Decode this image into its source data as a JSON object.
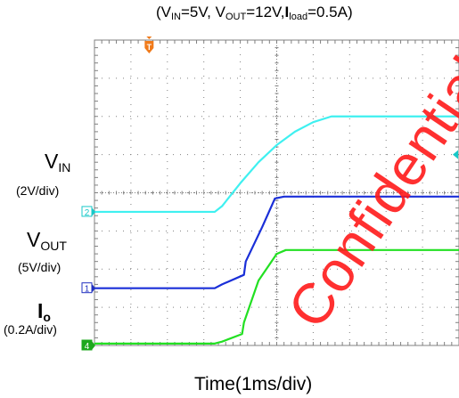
{
  "title_parts": {
    "v": "(V",
    "in_sub": "IN",
    "mid1": "=5V, V",
    "out_sub": "OUT",
    "mid2": "=12V,",
    "i": "I",
    "load_sub": "load",
    "end": "=0.5A)"
  },
  "labels": {
    "vin_main": "V",
    "vin_sub": "IN",
    "vin_scale": "(2V/div)",
    "vout_main": "V",
    "vout_sub": "OUT",
    "vout_scale": "(5V/div)",
    "io_main": "I",
    "io_sub": "o",
    "io_scale": "(0.2A/div)"
  },
  "xlabel": "Time(1ms/div)",
  "watermark": "Confidential",
  "colors": {
    "vin": "#3ff0f0",
    "vout": "#1a2fd8",
    "io": "#22e022",
    "trigger": "#f07a1a",
    "marker_vin": "#18c8c8",
    "marker_vout": "#2030c0",
    "marker_io": "#1ea81e",
    "grid": "#808080",
    "watermark": "#ff1a1a"
  },
  "chart_data": {
    "type": "line",
    "xlabel": "Time(1ms/div)",
    "x_unit": "ms",
    "xlim": [
      0,
      10
    ],
    "y_unit": "div",
    "ylim": [
      -4,
      4
    ],
    "grid": true,
    "trigger_marker": "T",
    "series": [
      {
        "name": "VIN",
        "channel": "2",
        "scale": "2V/div",
        "ground_div": -0.5,
        "x": [
          0,
          3.3,
          3.5,
          4.0,
          4.5,
          5.0,
          5.5,
          6.0,
          6.5,
          10
        ],
        "y": [
          0,
          0,
          0.15,
          0.75,
          1.3,
          1.75,
          2.1,
          2.35,
          2.5,
          2.5
        ]
      },
      {
        "name": "VOUT",
        "channel": "1",
        "scale": "5V/div",
        "ground_div": -2.5,
        "x": [
          0,
          3.3,
          3.5,
          4.1,
          4.15,
          4.6,
          4.95,
          5.2,
          10
        ],
        "y": [
          0,
          0,
          0.1,
          0.35,
          0.7,
          1.6,
          2.35,
          2.4,
          2.4
        ]
      },
      {
        "name": "Io",
        "channel": "4",
        "scale": "0.2A/div",
        "ground_div": -4,
        "x": [
          0,
          3.3,
          3.5,
          4.05,
          4.1,
          4.5,
          5.0,
          5.25,
          10
        ],
        "y": [
          0.05,
          0.05,
          0.1,
          0.3,
          0.6,
          1.7,
          2.4,
          2.5,
          2.5
        ]
      }
    ]
  }
}
